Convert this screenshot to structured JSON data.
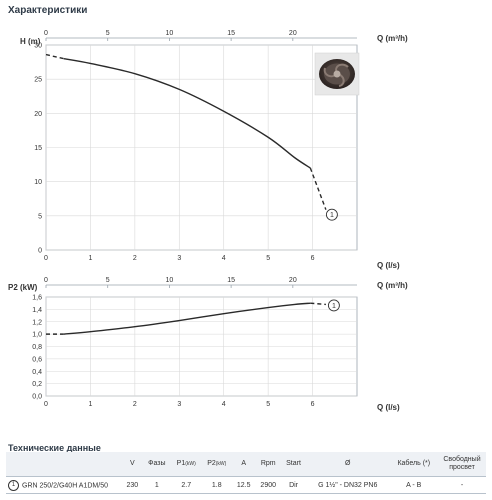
{
  "header": {
    "title": "Характеристики"
  },
  "chart_data": [
    {
      "type": "line",
      "ylabel": "H (m)",
      "xlabel": "Q (l/s)",
      "x2label": "Q (m³/h)",
      "ylim": [
        0,
        30
      ],
      "xlim": [
        0,
        7
      ],
      "x2lim": [
        0,
        25.2
      ],
      "yticks": [
        "0",
        "5",
        "10",
        "15",
        "20",
        "25",
        "30"
      ],
      "xticks": [
        "0",
        "1",
        "2",
        "3",
        "4",
        "5",
        "6"
      ],
      "x2ticks": [
        "0",
        "5",
        "10",
        "15",
        "20"
      ],
      "grid": true,
      "series": [
        {
          "name": "1",
          "x": [
            0.4,
            1,
            2,
            3,
            4,
            5,
            5.6,
            5.95
          ],
          "y": [
            28.0,
            27.3,
            25.8,
            23.5,
            20.3,
            16.5,
            13.5,
            12.0
          ]
        }
      ],
      "dashed_start": {
        "x": [
          0,
          0.4
        ],
        "y": [
          28.6,
          28.0
        ]
      },
      "dashed_end": {
        "x": [
          5.95,
          6.3
        ],
        "y": [
          12.0,
          5.9
        ]
      },
      "curve_label": "1"
    },
    {
      "type": "line",
      "ylabel": "P2 (kW)",
      "xlabel": "Q (l/s)",
      "x2label": "Q (m³/h)",
      "ylim": [
        0,
        1.6
      ],
      "xlim": [
        0,
        7
      ],
      "x2lim": [
        0,
        25.2
      ],
      "yticks": [
        "0,0",
        "0,2",
        "0,4",
        "0,6",
        "0,8",
        "1,0",
        "1,2",
        "1,4",
        "1,6"
      ],
      "xticks": [
        "0",
        "1",
        "2",
        "3",
        "4",
        "5",
        "6"
      ],
      "x2ticks": [
        "0",
        "5",
        "10",
        "15",
        "20"
      ],
      "grid": true,
      "series": [
        {
          "name": "1",
          "x": [
            0.4,
            1,
            2,
            3,
            4,
            5,
            5.6,
            5.95
          ],
          "y": [
            1.0,
            1.04,
            1.12,
            1.22,
            1.33,
            1.43,
            1.48,
            1.5
          ]
        }
      ],
      "dashed_start": {
        "x": [
          0,
          0.4
        ],
        "y": [
          1.0,
          1.0
        ]
      },
      "dashed_end": {
        "x": [
          5.95,
          6.3
        ],
        "y": [
          1.5,
          1.48
        ]
      },
      "curve_label": "1"
    }
  ],
  "table": {
    "title": "Технические данные",
    "headers": {
      "v": "V",
      "phases": "Фазы",
      "p1": "P1",
      "p1_unit": "(kW)",
      "p2": "P2",
      "p2_unit": "(kW)",
      "a": "A",
      "rpm": "Rpm",
      "start": "Start",
      "dia": "Ø",
      "cable": "Кабель (*)",
      "clearance": "Свободный просвет"
    },
    "row": {
      "index": "1",
      "model": "GRN 250/2/G40H A1DM/50",
      "v": "230",
      "phases": "1",
      "p1": "2.7",
      "p2": "1.8",
      "a": "12.5",
      "rpm": "2900",
      "start": "Dir",
      "dia": "G 1½\" - DN32 PN6",
      "cable": "A - B",
      "clearance": "-"
    }
  },
  "colors": {
    "curve": "#2a2a2a",
    "grid": "#d9d9d9",
    "title": "#2f3b48",
    "table_header_bg": "#eef1f5"
  },
  "icons": {
    "impeller": "impeller-image"
  }
}
